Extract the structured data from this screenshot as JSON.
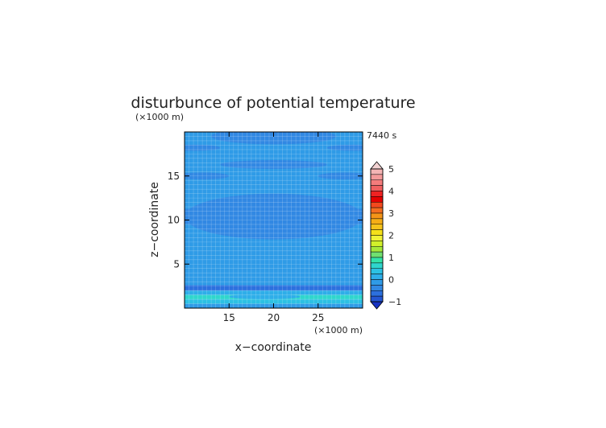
{
  "chart_data": {
    "type": "heatmap",
    "title": "disturbunce of potential temperature",
    "time_label": "7440 s",
    "xlabel": "x−coordinate",
    "ylabel": "z−coordinate",
    "x_unit": "(×1000 m)",
    "y_unit": "(×1000 m)",
    "xlim": [
      10,
      30
    ],
    "ylim": [
      0,
      20
    ],
    "x_ticks": [
      15,
      20,
      25
    ],
    "y_ticks": [
      5,
      10,
      15
    ],
    "grid": true,
    "colorbar": {
      "ticks": [
        5,
        4,
        3,
        2,
        1,
        0,
        -1
      ],
      "range": [
        -1,
        5
      ],
      "step": 0.25,
      "colors_high_to_low": [
        "#f4b4b4",
        "#f49a9a",
        "#f47c7c",
        "#f06060",
        "#ee2222",
        "#e40000",
        "#f24a1e",
        "#f46e20",
        "#f59518",
        "#f5ad16",
        "#f5c31a",
        "#f5e01a",
        "#f0f236",
        "#d2f02a",
        "#a6e83a",
        "#70e070",
        "#34e3a8",
        "#2fd6cd",
        "#2cc1e3",
        "#2eaee9",
        "#2f9be7",
        "#3188e3",
        "#2c70de",
        "#2456d2"
      ],
      "over_color": "#f2d2d2",
      "under_color": "#1732c2"
    },
    "field_bands": [
      {
        "z_range": [
          0.0,
          0.5
        ],
        "value": -0.2
      },
      {
        "z_range": [
          0.5,
          1.0
        ],
        "value": 0.3
      },
      {
        "z_range": [
          1.0,
          1.5
        ],
        "value": 0.7
      },
      {
        "z_range": [
          1.5,
          2.0
        ],
        "value": 0.25
      },
      {
        "z_range": [
          2.0,
          2.6
        ],
        "value": -0.6
      },
      {
        "z_range": [
          2.6,
          20.0
        ],
        "value": -0.1
      }
    ],
    "field_cells": [
      {
        "x": 19,
        "z": 1.3,
        "rx": 4,
        "rz": 0.3,
        "value": 0.05
      },
      {
        "x": 12,
        "z": 5.5,
        "rx": 4,
        "rz": 0.6,
        "value": -0.2
      },
      {
        "x": 29,
        "z": 5.5,
        "rx": 4,
        "rz": 0.6,
        "value": -0.2
      },
      {
        "x": 20,
        "z": 5.6,
        "rx": 5,
        "rz": 0.5,
        "value": -0.2
      },
      {
        "x": 20,
        "z": 10.4,
        "rx": 10,
        "rz": 2.6,
        "value": -0.3
      },
      {
        "x": 20,
        "z": 10.4,
        "rx": 14,
        "rz": 1.2,
        "value": -0.3
      },
      {
        "x": 12,
        "z": 15.0,
        "rx": 3,
        "rz": 0.4,
        "value": -0.3
      },
      {
        "x": 28,
        "z": 15.0,
        "rx": 3,
        "rz": 0.4,
        "value": -0.3
      },
      {
        "x": 20,
        "z": 16.3,
        "rx": 6,
        "rz": 0.5,
        "value": -0.3
      },
      {
        "x": 11,
        "z": 18.2,
        "rx": 3,
        "rz": 0.35,
        "value": -0.3
      },
      {
        "x": 29,
        "z": 18.2,
        "rx": 3,
        "rz": 0.35,
        "value": -0.3
      },
      {
        "x": 20,
        "z": 19.5,
        "rx": 7,
        "rz": 0.9,
        "value": -0.3
      }
    ]
  }
}
